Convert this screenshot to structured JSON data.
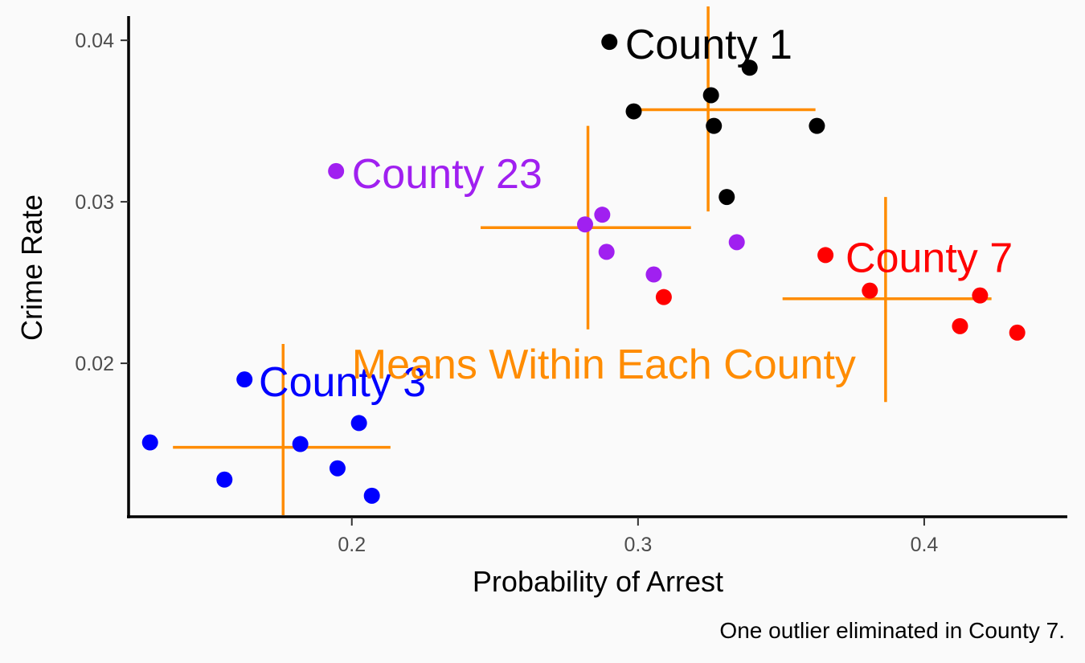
{
  "chart_data": {
    "type": "scatter",
    "xlabel": "Probability of Arrest",
    "ylabel": "Crime Rate",
    "xlim": [
      0.122,
      0.45
    ],
    "ylim": [
      0.0104,
      0.0415
    ],
    "x_ticks": [
      0.2,
      0.3,
      0.4
    ],
    "x_tick_labels": [
      "0.2",
      "0.3",
      "0.4"
    ],
    "y_ticks": [
      0.02,
      0.03,
      0.04
    ],
    "y_tick_labels": [
      "0.02",
      "0.03",
      "0.04"
    ],
    "grid": false,
    "caption": "One outlier eliminated in County 7.",
    "mean_annotation": {
      "text": "Means Within Each County",
      "x": 0.2,
      "y": 0.02,
      "color": "#FF8C00"
    },
    "series": [
      {
        "name": "County 1",
        "color": "#000000",
        "points": [
          {
            "x": 0.29,
            "y": 0.0399
          },
          {
            "x": 0.339,
            "y": 0.0383
          },
          {
            "x": 0.3255,
            "y": 0.0366
          },
          {
            "x": 0.2985,
            "y": 0.0356
          },
          {
            "x": 0.3265,
            "y": 0.0347
          },
          {
            "x": 0.3625,
            "y": 0.0347
          },
          {
            "x": 0.331,
            "y": 0.0303
          }
        ],
        "mean": {
          "x": 0.3245,
          "y": 0.0357,
          "x_span": [
            0.2965,
            0.362
          ],
          "y_span": [
            0.0294,
            0.0421
          ]
        },
        "label": {
          "text": "County 1",
          "x": 0.2955,
          "y": 0.0398
        }
      },
      {
        "name": "County 23",
        "color": "#A020F0",
        "points": [
          {
            "x": 0.1945,
            "y": 0.0319
          },
          {
            "x": 0.2875,
            "y": 0.0292
          },
          {
            "x": 0.2815,
            "y": 0.0286
          },
          {
            "x": 0.3345,
            "y": 0.0275
          },
          {
            "x": 0.289,
            "y": 0.0269
          },
          {
            "x": 0.3055,
            "y": 0.0255
          }
        ],
        "mean": {
          "x": 0.2825,
          "y": 0.0284,
          "x_span": [
            0.245,
            0.3185
          ],
          "y_span": [
            0.0221,
            0.0347
          ]
        },
        "label": {
          "text": "County 23",
          "x": 0.2,
          "y": 0.0318
        }
      },
      {
        "name": "County 7",
        "color": "#FF0000",
        "points": [
          {
            "x": 0.3655,
            "y": 0.0267
          },
          {
            "x": 0.381,
            "y": 0.0245
          },
          {
            "x": 0.4195,
            "y": 0.0242
          },
          {
            "x": 0.309,
            "y": 0.0241
          },
          {
            "x": 0.4125,
            "y": 0.0223
          },
          {
            "x": 0.4325,
            "y": 0.0219
          }
        ],
        "mean": {
          "x": 0.3865,
          "y": 0.024,
          "x_span": [
            0.3505,
            0.4235
          ],
          "y_span": [
            0.0176,
            0.0303
          ]
        },
        "label": {
          "text": "County 7",
          "x": 0.3725,
          "y": 0.0266
        }
      },
      {
        "name": "County 3",
        "color": "#0000FF",
        "points": [
          {
            "x": 0.1625,
            "y": 0.019
          },
          {
            "x": 0.2025,
            "y": 0.0163
          },
          {
            "x": 0.1295,
            "y": 0.0151
          },
          {
            "x": 0.182,
            "y": 0.015
          },
          {
            "x": 0.195,
            "y": 0.0135
          },
          {
            "x": 0.1555,
            "y": 0.0128
          },
          {
            "x": 0.207,
            "y": 0.0118
          }
        ],
        "mean": {
          "x": 0.176,
          "y": 0.0148,
          "x_span": [
            0.1375,
            0.2135
          ],
          "y_span": [
            0.0106,
            0.0212
          ]
        },
        "label": {
          "text": "County 3",
          "x": 0.1675,
          "y": 0.0189
        }
      }
    ]
  }
}
